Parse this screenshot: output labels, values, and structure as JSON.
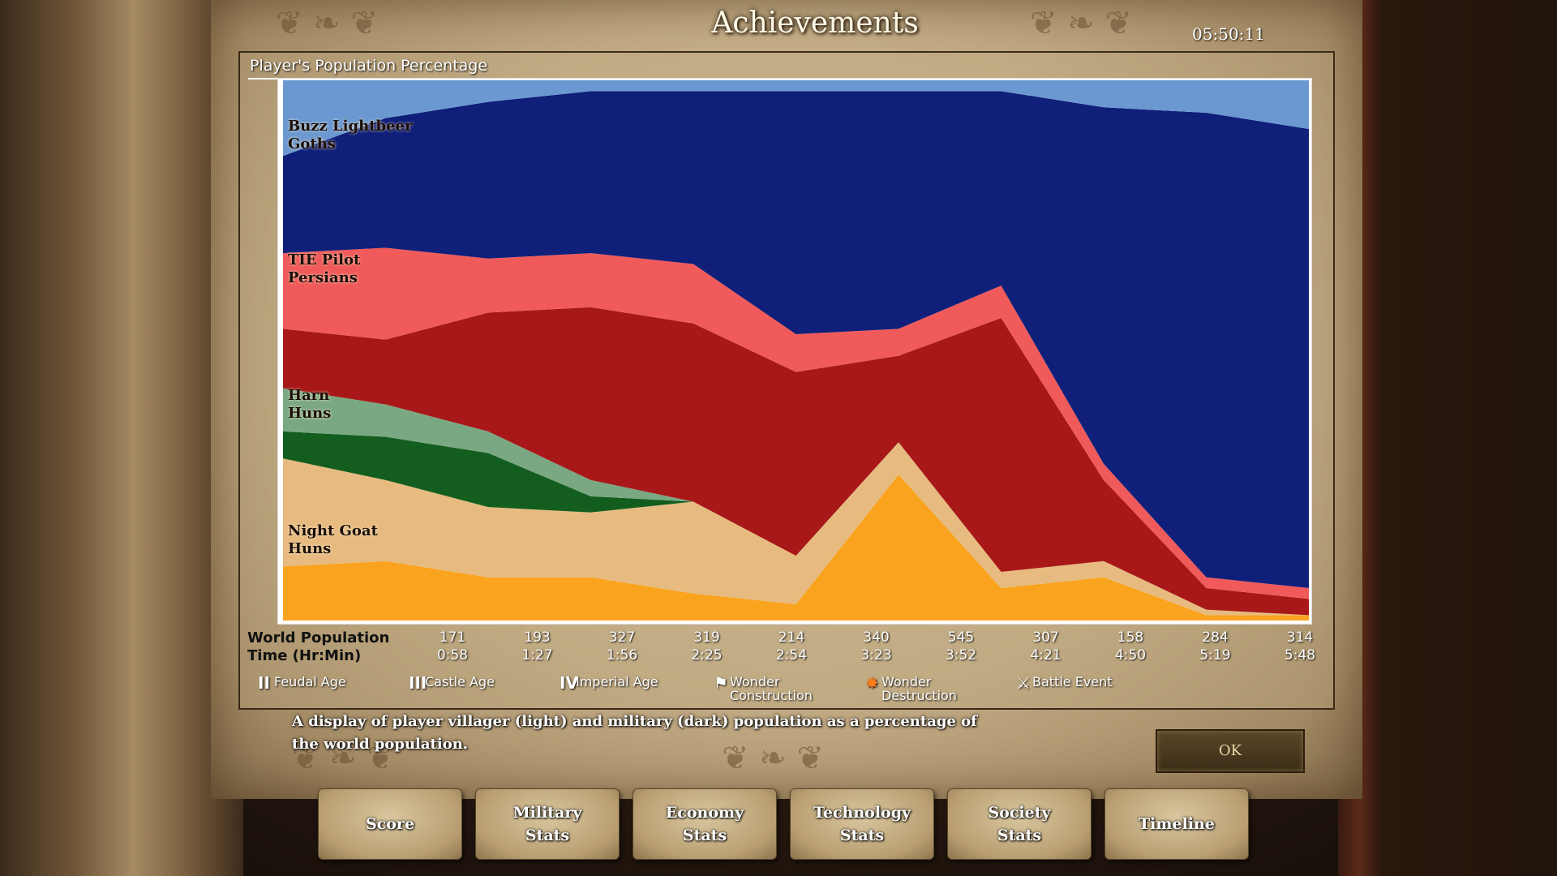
{
  "screen": {
    "title": "Achievements",
    "clock": "05:50:11"
  },
  "panel": {
    "title": "Player's Population Percentage"
  },
  "players": [
    {
      "name": "Buzz Lightbeer",
      "civ": "Goths",
      "villager_color": "#6b98d0",
      "military_color": "#0f1f7a"
    },
    {
      "name": "TIE Pilot",
      "civ": "Persians",
      "villager_color": "#f05a5a",
      "military_color": "#a81818"
    },
    {
      "name": "Harn",
      "civ": "Huns",
      "villager_color": "#7aa883",
      "military_color": "#135e1f"
    },
    {
      "name": "Night Goat",
      "civ": "Huns",
      "villager_color": "#e7bb80",
      "military_color": "#f9a31e"
    }
  ],
  "axis": {
    "world_population_label": "World Population",
    "time_label": "Time (Hr:Min)",
    "world_population": [
      "171",
      "193",
      "327",
      "319",
      "214",
      "340",
      "545",
      "307",
      "158",
      "284",
      "314"
    ],
    "time": [
      "0:58",
      "1:27",
      "1:56",
      "2:25",
      "2:54",
      "3:23",
      "3:52",
      "4:21",
      "4:50",
      "5:19",
      "5:48"
    ]
  },
  "legend": [
    {
      "icon": "II",
      "icon_name": "feudal-age-icon",
      "label": "Feudal Age"
    },
    {
      "icon": "III",
      "icon_name": "castle-age-icon",
      "label": "Castle Age"
    },
    {
      "icon": "IV",
      "icon_name": "imperial-age-icon",
      "label": "Imperial Age"
    },
    {
      "icon": "⚑",
      "icon_name": "wonder-construction-icon",
      "label": "Wonder Construction"
    },
    {
      "icon": "✸",
      "icon_name": "wonder-destruction-icon",
      "label": "Wonder Destruction"
    },
    {
      "icon": "⚔",
      "icon_name": "battle-event-icon",
      "label": "Battle Event"
    }
  ],
  "description": "A display of player villager (light) and military (dark) population as a percentage of the world population.",
  "ok_label": "OK",
  "tabs": [
    "Score",
    "Military Stats",
    "Economy Stats",
    "Technology Stats",
    "Society Stats",
    "Timeline"
  ],
  "chart_data": {
    "type": "area",
    "stacked_percent": true,
    "x_label": "Time (Hr:Min)",
    "x": [
      "0:58",
      "1:27",
      "1:56",
      "2:25",
      "2:54",
      "3:23",
      "3:52",
      "4:21",
      "4:50",
      "5:19",
      "5:48"
    ],
    "world_population": [
      171,
      193,
      327,
      319,
      214,
      340,
      545,
      307,
      158,
      284,
      314
    ],
    "series": [
      {
        "name": "Night Goat - Huns military",
        "values": [
          10,
          11,
          8,
          8,
          5,
          3,
          27,
          6,
          8,
          1,
          1
        ]
      },
      {
        "name": "Night Goat - Huns villagers",
        "values": [
          20,
          15,
          13,
          12,
          17,
          9,
          6,
          3,
          3,
          1,
          0
        ]
      },
      {
        "name": "Harn - Huns military",
        "values": [
          5,
          8,
          10,
          3,
          0,
          0,
          0,
          0,
          0,
          0,
          0
        ]
      },
      {
        "name": "Harn - Huns villagers",
        "values": [
          8,
          6,
          4,
          3,
          0,
          0,
          0,
          0,
          0,
          0,
          0
        ]
      },
      {
        "name": "TIE Pilot - Persians military",
        "values": [
          11,
          12,
          22,
          32,
          33,
          34,
          16,
          47,
          15,
          4,
          3
        ]
      },
      {
        "name": "TIE Pilot - Persians villagers",
        "values": [
          14,
          17,
          10,
          10,
          11,
          7,
          5,
          6,
          3,
          2,
          2
        ]
      },
      {
        "name": "Buzz Lightbeer - Goths military",
        "values": [
          18,
          24,
          29,
          30,
          32,
          45,
          44,
          36,
          66,
          86,
          85
        ]
      },
      {
        "name": "Buzz Lightbeer - Goths villagers",
        "values": [
          14,
          7,
          4,
          2,
          2,
          2,
          2,
          2,
          5,
          6,
          9
        ]
      }
    ],
    "ylim": [
      0,
      100
    ],
    "legend_position": "bottom"
  }
}
